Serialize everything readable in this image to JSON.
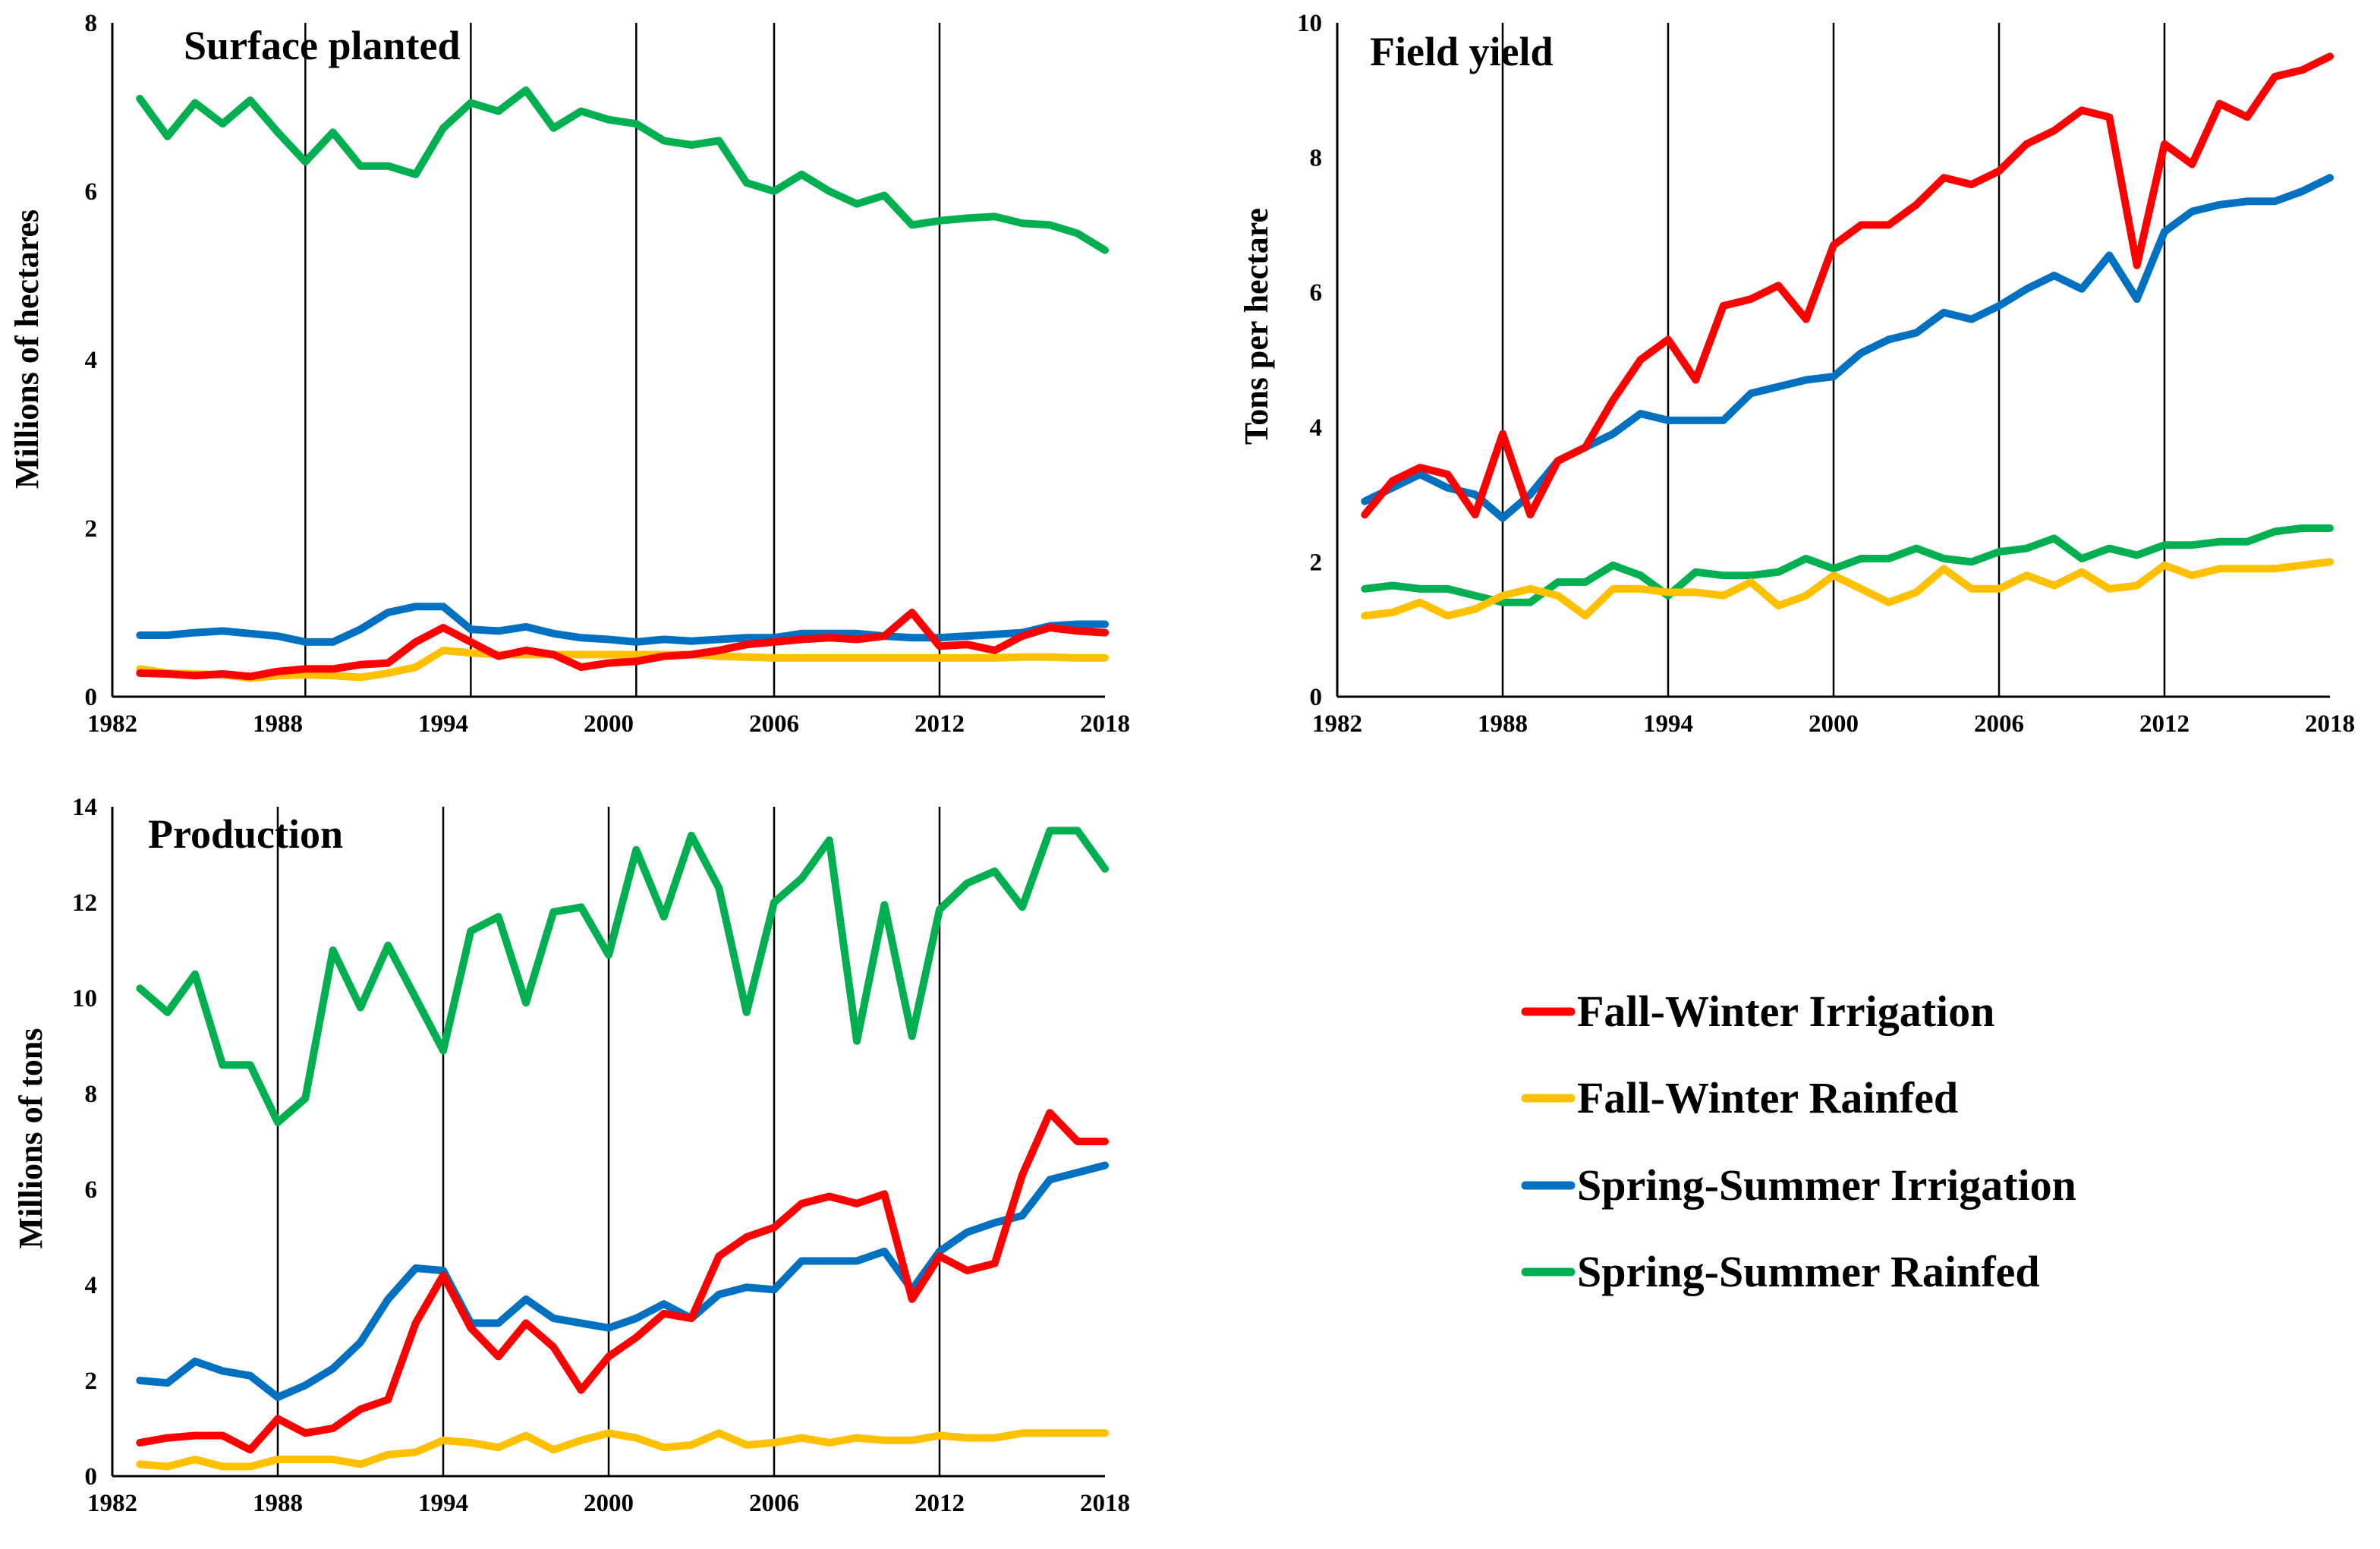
{
  "series_styles": [
    {
      "name": "Fall-Winter Irrigation",
      "color": "#FF0000"
    },
    {
      "name": "Fall-Winter Rainfed",
      "color": "#FFC000"
    },
    {
      "name": "Spring-Summer Irrigation",
      "color": "#0070C0"
    },
    {
      "name": "Spring-Summer Rainfed",
      "color": "#00B050"
    }
  ],
  "legend": {
    "items": [
      {
        "label": "Fall-Winter Irrigation",
        "color": "#FF0000"
      },
      {
        "label": "Fall-Winter Rainfed",
        "color": "#FFC000"
      },
      {
        "label": "Spring-Summer Irrigation",
        "color": "#0070C0"
      },
      {
        "label": "Spring-Summer Rainfed",
        "color": "#00B050"
      }
    ]
  },
  "chart_data": [
    {
      "type": "line",
      "title": "Surface planted",
      "xlabel": "",
      "ylabel": "Millions of hectares",
      "xlim": [
        1982,
        2018
      ],
      "ylim": [
        0,
        8
      ],
      "xticks": [
        1982,
        1988,
        1994,
        2000,
        2006,
        2012,
        2018
      ],
      "yticks": [
        0,
        2,
        4,
        6,
        8
      ],
      "ytick_labels": [
        "0",
        "2",
        "4",
        "6",
        "8"
      ],
      "vlines": [
        1982,
        1989,
        1995,
        2001,
        2006,
        2012
      ],
      "x": [
        1983,
        1984,
        1985,
        1986,
        1987,
        1988,
        1989,
        1990,
        1991,
        1992,
        1993,
        1994,
        1995,
        1996,
        1997,
        1998,
        1999,
        2000,
        2001,
        2002,
        2003,
        2004,
        2005,
        2006,
        2007,
        2008,
        2009,
        2010,
        2011,
        2012,
        2013,
        2014,
        2015,
        2016,
        2017,
        2018
      ],
      "series": [
        {
          "name": "Fall-Winter Irrigation",
          "values": [
            0.28,
            0.27,
            0.25,
            0.27,
            0.24,
            0.3,
            0.33,
            0.33,
            0.38,
            0.4,
            0.65,
            0.82,
            0.65,
            0.48,
            0.55,
            0.5,
            0.35,
            0.4,
            0.42,
            0.48,
            0.5,
            0.55,
            0.62,
            0.65,
            0.68,
            0.7,
            0.68,
            0.72,
            1.0,
            0.6,
            0.62,
            0.55,
            0.72,
            0.82,
            0.78,
            0.76
          ]
        },
        {
          "name": "Fall-Winter Rainfed",
          "values": [
            0.33,
            0.28,
            0.27,
            0.26,
            0.22,
            0.25,
            0.26,
            0.25,
            0.23,
            0.28,
            0.35,
            0.55,
            0.52,
            0.5,
            0.5,
            0.5,
            0.5,
            0.5,
            0.5,
            0.5,
            0.5,
            0.48,
            0.47,
            0.46,
            0.46,
            0.46,
            0.46,
            0.46,
            0.46,
            0.46,
            0.46,
            0.46,
            0.47,
            0.47,
            0.46,
            0.46
          ]
        },
        {
          "name": "Spring-Summer Irrigation",
          "values": [
            0.73,
            0.73,
            0.76,
            0.78,
            0.75,
            0.72,
            0.65,
            0.65,
            0.8,
            1.0,
            1.07,
            1.07,
            0.8,
            0.78,
            0.83,
            0.75,
            0.7,
            0.68,
            0.65,
            0.68,
            0.66,
            0.68,
            0.7,
            0.7,
            0.75,
            0.75,
            0.75,
            0.72,
            0.7,
            0.7,
            0.72,
            0.74,
            0.76,
            0.84,
            0.86,
            0.86
          ]
        },
        {
          "name": "Spring-Summer Rainfed",
          "values": [
            7.1,
            6.65,
            7.05,
            6.8,
            7.08,
            6.7,
            6.35,
            6.7,
            6.3,
            6.3,
            6.2,
            6.75,
            7.05,
            6.95,
            7.2,
            6.75,
            6.95,
            6.85,
            6.8,
            6.6,
            6.55,
            6.6,
            6.1,
            6.0,
            6.2,
            6.0,
            5.85,
            5.95,
            5.6,
            5.65,
            5.68,
            5.7,
            5.62,
            5.6,
            5.5,
            5.3
          ]
        }
      ]
    },
    {
      "type": "line",
      "title": "Field yield",
      "xlabel": "",
      "ylabel": "Tons per hectare",
      "xlim": [
        1982,
        2018
      ],
      "ylim": [
        0,
        10
      ],
      "xticks": [
        1982,
        1988,
        1994,
        2000,
        2006,
        2012,
        2018
      ],
      "yticks": [
        0,
        2,
        4,
        6,
        8,
        10
      ],
      "ytick_labels": [
        "0",
        "2",
        "4",
        "6",
        "8",
        "10"
      ],
      "vlines": [
        1988,
        1994,
        2000,
        2006,
        2012
      ],
      "x": [
        1983,
        1984,
        1985,
        1986,
        1987,
        1988,
        1989,
        1990,
        1991,
        1992,
        1993,
        1994,
        1995,
        1996,
        1997,
        1998,
        1999,
        2000,
        2001,
        2002,
        2003,
        2004,
        2005,
        2006,
        2007,
        2008,
        2009,
        2010,
        2011,
        2012,
        2013,
        2014,
        2015,
        2016,
        2017,
        2018
      ],
      "series": [
        {
          "name": "Fall-Winter Irrigation",
          "values": [
            2.7,
            3.2,
            3.4,
            3.3,
            2.7,
            3.9,
            2.7,
            3.5,
            3.7,
            4.4,
            5.0,
            5.3,
            4.7,
            5.8,
            5.9,
            6.1,
            5.6,
            6.7,
            7.0,
            7.0,
            7.3,
            7.7,
            7.6,
            7.8,
            8.2,
            8.4,
            8.7,
            8.6,
            6.4,
            8.2,
            7.9,
            8.8,
            8.6,
            9.2,
            9.3,
            9.5
          ]
        },
        {
          "name": "Fall-Winter Rainfed",
          "values": [
            1.2,
            1.25,
            1.4,
            1.2,
            1.3,
            1.5,
            1.6,
            1.5,
            1.2,
            1.6,
            1.6,
            1.55,
            1.55,
            1.5,
            1.7,
            1.35,
            1.5,
            1.8,
            1.6,
            1.4,
            1.55,
            1.9,
            1.6,
            1.6,
            1.8,
            1.65,
            1.85,
            1.6,
            1.65,
            1.95,
            1.8,
            1.9,
            1.9,
            1.9,
            1.95,
            2.0
          ]
        },
        {
          "name": "Spring-Summer Irrigation",
          "values": [
            2.9,
            3.1,
            3.3,
            3.1,
            3.0,
            2.65,
            3.0,
            3.5,
            3.7,
            3.9,
            4.2,
            4.1,
            4.1,
            4.1,
            4.5,
            4.6,
            4.7,
            4.75,
            5.1,
            5.3,
            5.4,
            5.7,
            5.6,
            5.8,
            6.05,
            6.25,
            6.05,
            6.55,
            5.9,
            6.9,
            7.2,
            7.3,
            7.35,
            7.35,
            7.5,
            7.7
          ]
        },
        {
          "name": "Spring-Summer Rainfed",
          "values": [
            1.6,
            1.65,
            1.6,
            1.6,
            1.5,
            1.4,
            1.4,
            1.7,
            1.7,
            1.95,
            1.8,
            1.5,
            1.85,
            1.8,
            1.8,
            1.85,
            2.05,
            1.9,
            2.05,
            2.05,
            2.2,
            2.05,
            2.0,
            2.15,
            2.2,
            2.35,
            2.05,
            2.2,
            2.1,
            2.25,
            2.25,
            2.3,
            2.3,
            2.45,
            2.5,
            2.5
          ]
        }
      ]
    },
    {
      "type": "line",
      "title": "Production",
      "xlabel": "",
      "ylabel": "Millions of tons",
      "xlim": [
        1982,
        2018
      ],
      "ylim": [
        0,
        14
      ],
      "xticks": [
        1982,
        1988,
        1994,
        2000,
        2006,
        2012,
        2018
      ],
      "yticks": [
        0,
        2,
        4,
        6,
        8,
        10,
        12,
        14
      ],
      "ytick_labels": [
        "0",
        "2",
        "4",
        "6",
        "8",
        "10",
        "12",
        "14"
      ],
      "vlines": [
        1988,
        1994,
        2000,
        2006,
        2012
      ],
      "x": [
        1983,
        1984,
        1985,
        1986,
        1987,
        1988,
        1989,
        1990,
        1991,
        1992,
        1993,
        1994,
        1995,
        1996,
        1997,
        1998,
        1999,
        2000,
        2001,
        2002,
        2003,
        2004,
        2005,
        2006,
        2007,
        2008,
        2009,
        2010,
        2011,
        2012,
        2013,
        2014,
        2015,
        2016,
        2017,
        2018
      ],
      "series": [
        {
          "name": "Fall-Winter Irrigation",
          "values": [
            0.7,
            0.8,
            0.85,
            0.85,
            0.55,
            1.2,
            0.9,
            1.0,
            1.4,
            1.6,
            3.2,
            4.2,
            3.1,
            2.5,
            3.2,
            2.7,
            1.8,
            2.5,
            2.9,
            3.4,
            3.3,
            4.6,
            5.0,
            5.2,
            5.7,
            5.85,
            5.7,
            5.9,
            3.7,
            4.6,
            4.3,
            4.45,
            6.3,
            7.6,
            7.0,
            7.0
          ]
        },
        {
          "name": "Fall-Winter Rainfed",
          "values": [
            0.25,
            0.2,
            0.35,
            0.2,
            0.2,
            0.35,
            0.35,
            0.35,
            0.25,
            0.45,
            0.5,
            0.75,
            0.7,
            0.6,
            0.85,
            0.55,
            0.75,
            0.9,
            0.8,
            0.6,
            0.65,
            0.9,
            0.65,
            0.7,
            0.8,
            0.7,
            0.8,
            0.75,
            0.75,
            0.85,
            0.8,
            0.8,
            0.9,
            0.9,
            0.9,
            0.9
          ]
        },
        {
          "name": "Spring-Summer Irrigation",
          "values": [
            2.0,
            1.95,
            2.4,
            2.2,
            2.1,
            1.65,
            1.9,
            2.25,
            2.8,
            3.7,
            4.35,
            4.3,
            3.2,
            3.2,
            3.7,
            3.3,
            3.2,
            3.1,
            3.3,
            3.6,
            3.3,
            3.8,
            3.95,
            3.9,
            4.5,
            4.5,
            4.5,
            4.7,
            3.9,
            4.7,
            5.1,
            5.3,
            5.45,
            6.2,
            6.35,
            6.5
          ]
        },
        {
          "name": "Spring-Summer Rainfed",
          "values": [
            10.2,
            9.7,
            10.5,
            8.6,
            8.6,
            7.4,
            7.9,
            11.0,
            9.8,
            11.1,
            10.0,
            8.9,
            11.4,
            11.7,
            9.9,
            11.8,
            11.9,
            10.9,
            13.1,
            11.7,
            13.4,
            12.3,
            9.7,
            12.0,
            12.5,
            13.3,
            9.1,
            11.95,
            9.2,
            11.85,
            12.4,
            12.65,
            11.9,
            13.5,
            13.5,
            12.7
          ]
        }
      ]
    }
  ]
}
